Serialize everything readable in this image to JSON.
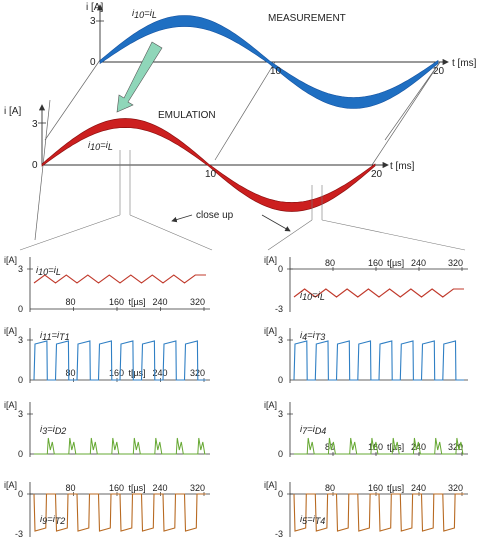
{
  "colors": {
    "measurement": "#1f6fc2",
    "emulation": "#cc1f1f",
    "arrow": "#8fd6b9",
    "inductor_trace": "#c0392b",
    "transistor_trace": "#2f7fc4",
    "diode_trace": "#66a833",
    "transistor2_trace": "#b86a22",
    "axis": "#333333"
  },
  "measurement": {
    "title": "MEASUREMENT",
    "y_axis": "i [A]",
    "x_axis": "t [ms]",
    "y_ticks": [
      "3",
      "0"
    ],
    "x_ticks": [
      "10",
      "20"
    ],
    "curve_label": "i10=iL"
  },
  "emulation": {
    "title": "EMULATION",
    "y_axis": "i [A]",
    "x_axis": "t [ms]",
    "y_ticks": [
      "3",
      "0"
    ],
    "x_ticks": [
      "10",
      "20"
    ],
    "curve_label": "i10=iL"
  },
  "close_up_label": "close up",
  "panels": {
    "left": [
      {
        "y_axis": "i[A]",
        "y_ticks": [
          "3",
          "0"
        ],
        "x_axis": "t[µs]",
        "x_ticks": [
          "80",
          "160",
          "240",
          "320"
        ],
        "label_base": "i",
        "label_sub": "10",
        "label_eq": "=i",
        "label_eq_sub": "L"
      },
      {
        "y_axis": "i[A]",
        "y_ticks": [
          "3",
          "0"
        ],
        "x_axis": "t[µs]",
        "x_ticks": [
          "80",
          "160",
          "240",
          "320"
        ],
        "label_base": "i",
        "label_sub": "11",
        "label_eq": "=i",
        "label_eq_sub": "T1"
      },
      {
        "y_axis": "i[A]",
        "y_ticks": [
          "3",
          "0"
        ],
        "x_axis": "",
        "x_ticks": [],
        "label_base": "i",
        "label_sub": "3",
        "label_eq": "=i",
        "label_eq_sub": "D2"
      },
      {
        "y_axis": "i[A]",
        "y_ticks": [
          "0",
          "-3"
        ],
        "x_axis": "t[µs]",
        "x_ticks": [
          "80",
          "160",
          "240",
          "320"
        ],
        "label_base": "i",
        "label_sub": "9",
        "label_eq": "=i",
        "label_eq_sub": "T2"
      }
    ],
    "right": [
      {
        "y_axis": "i[A]",
        "y_ticks": [
          "0",
          "-3"
        ],
        "x_axis": "t[µs]",
        "x_ticks": [
          "80",
          "160",
          "240",
          "320"
        ],
        "label_base": "i",
        "label_sub": "10",
        "label_eq": "=i",
        "label_eq_sub": "L"
      },
      {
        "y_axis": "i[A]",
        "y_ticks": [
          "3",
          "0"
        ],
        "x_axis": "",
        "x_ticks": [],
        "label_base": "i",
        "label_sub": "4",
        "label_eq": "=i",
        "label_eq_sub": "T3"
      },
      {
        "y_axis": "i[A]",
        "y_ticks": [
          "3",
          "0"
        ],
        "x_axis": "t[µs]",
        "x_ticks": [
          "80",
          "160",
          "240",
          "320"
        ],
        "label_base": "i",
        "label_sub": "7",
        "label_eq": "=i",
        "label_eq_sub": "D4"
      },
      {
        "y_axis": "i[A]",
        "y_ticks": [
          "0",
          "-3"
        ],
        "x_axis": "t[µs]",
        "x_ticks": [
          "80",
          "160",
          "240",
          "320"
        ],
        "label_base": "i",
        "label_sub": "5",
        "label_eq": "=i",
        "label_eq_sub": "T4"
      }
    ]
  }
}
